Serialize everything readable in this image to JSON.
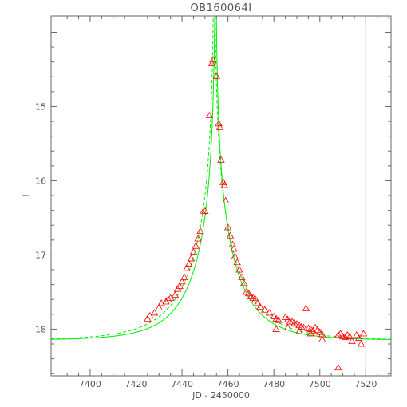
{
  "chart_data": {
    "type": "scatter",
    "title": "OB160064I",
    "xlabel": "JD - 2450000",
    "ylabel": "I",
    "xlim": [
      7383,
      7531
    ],
    "ylim": [
      18.63,
      13.78
    ],
    "y_inverted": true,
    "x_ticks": [
      7400,
      7420,
      7440,
      7460,
      7480,
      7500,
      7520
    ],
    "y_ticks": [
      15,
      16,
      17,
      18
    ],
    "x_tick_labels": [
      "7400",
      "7420",
      "7440",
      "7460",
      "7480",
      "7500",
      "7520"
    ],
    "y_tick_labels": [
      "15",
      "16",
      "17",
      "18"
    ],
    "grid": false,
    "marker": "triangle",
    "colors": {
      "data": "#ff0000",
      "model": "#00ee00",
      "vline": "#8888ff",
      "axes": "#666666",
      "text": "#555555"
    },
    "vline_x": 7520,
    "model_curves": [
      {
        "t0": 7454.6,
        "u0": 0.0015,
        "tE": 21,
        "baseline": 18.15,
        "style": "solid"
      },
      {
        "t0": 7454.0,
        "u0": 0.0015,
        "tE": 24,
        "baseline": 18.15,
        "style": "dashed"
      }
    ],
    "points": [
      [
        7425,
        17.86
      ],
      [
        7426,
        17.82
      ],
      [
        7428,
        17.78
      ],
      [
        7430,
        17.71
      ],
      [
        7431,
        17.65
      ],
      [
        7433,
        17.63
      ],
      [
        7434,
        17.6
      ],
      [
        7435,
        17.58
      ],
      [
        7437,
        17.54
      ],
      [
        7438,
        17.46
      ],
      [
        7439,
        17.42
      ],
      [
        7440,
        17.36
      ],
      [
        7441,
        17.3
      ],
      [
        7442,
        17.18
      ],
      [
        7443,
        17.12
      ],
      [
        7444,
        17.05
      ],
      [
        7445,
        16.96
      ],
      [
        7446,
        16.88
      ],
      [
        7447,
        16.78
      ],
      [
        7448,
        16.68
      ],
      [
        7449,
        16.43
      ],
      [
        7450,
        16.41
      ],
      [
        7452,
        15.12
      ],
      [
        7453,
        14.42
      ],
      [
        7453.5,
        14.37
      ],
      [
        7455,
        14.59
      ],
      [
        7456,
        15.23
      ],
      [
        7456.5,
        15.28
      ],
      [
        7457,
        15.72
      ],
      [
        7458,
        16.02
      ],
      [
        7458.5,
        16.06
      ],
      [
        7459,
        16.27
      ],
      [
        7460,
        16.63
      ],
      [
        7461,
        16.74
      ],
      [
        7462,
        16.86
      ],
      [
        7462.5,
        16.92
      ],
      [
        7463,
        17.02
      ],
      [
        7464,
        17.1
      ],
      [
        7465,
        17.2
      ],
      [
        7466,
        17.3
      ],
      [
        7467,
        17.38
      ],
      [
        7468,
        17.5
      ],
      [
        7469,
        17.52
      ],
      [
        7470,
        17.56
      ],
      [
        7471,
        17.58
      ],
      [
        7472,
        17.6
      ],
      [
        7473,
        17.65
      ],
      [
        7474,
        17.7
      ],
      [
        7476,
        17.74
      ],
      [
        7478,
        17.78
      ],
      [
        7480,
        17.83
      ],
      [
        7481,
        17.86
      ],
      [
        7482,
        17.88
      ],
      [
        7485,
        17.84
      ],
      [
        7486,
        17.87
      ],
      [
        7487,
        17.9
      ],
      [
        7488,
        17.9
      ],
      [
        7489,
        17.92
      ],
      [
        7490,
        17.93
      ],
      [
        7491,
        17.95
      ],
      [
        7492,
        17.97
      ],
      [
        7493,
        17.98
      ],
      [
        7494,
        17.72
      ],
      [
        7495,
        17.99
      ],
      [
        7496,
        18.0
      ],
      [
        7497,
        18.02
      ],
      [
        7498,
        17.98
      ],
      [
        7499,
        18.01
      ],
      [
        7500,
        18.04
      ],
      [
        7501,
        18.07
      ],
      [
        7508,
        18.08
      ],
      [
        7509,
        18.06
      ],
      [
        7510,
        18.1
      ],
      [
        7511,
        18.11
      ],
      [
        7512,
        18.08
      ],
      [
        7513,
        18.1
      ],
      [
        7516,
        18.08
      ],
      [
        7517,
        18.12
      ],
      [
        7519,
        18.06
      ],
      [
        7518,
        18.2
      ],
      [
        7508,
        18.52
      ],
      [
        7481,
        18.0
      ],
      [
        7486,
        17.98
      ],
      [
        7491,
        18.03
      ],
      [
        7496,
        18.06
      ],
      [
        7501,
        18.14
      ],
      [
        7514,
        18.16
      ]
    ]
  }
}
